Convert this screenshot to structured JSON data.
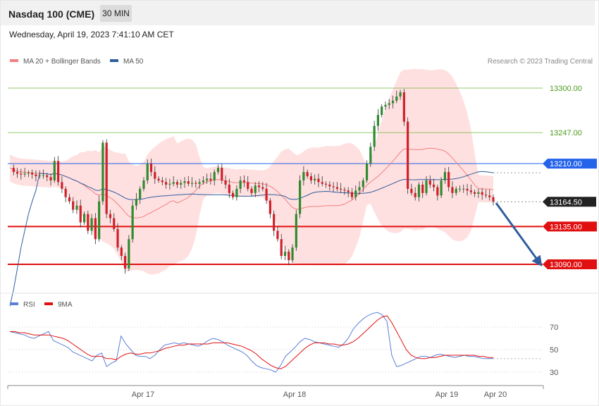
{
  "header": {
    "instrument": "Nasdaq 100 (CME)",
    "timeframe": "30 MIN",
    "datetime": "Wednesday, April 19, 2023 7:41:10 AM CET"
  },
  "legend": {
    "ma20_label": "MA 20 + Bollinger Bands",
    "ma50_label": "MA 50",
    "credit": "Research © 2023 Trading Central",
    "rsi_label": "RSI",
    "rsi_ma_label": "9MA"
  },
  "colors": {
    "bull": "#2e8b2e",
    "bear": "#d0202a",
    "ma20": "#f28080",
    "ma50": "#2f5d9e",
    "band": "#ffd6d6",
    "resistance": "#6fb83a",
    "pivot": "#2563eb",
    "support": "#e01010",
    "rsi": "#5b7fd8",
    "rsi_ma": "#e01010"
  },
  "chart_data": [
    {
      "type": "candlestick",
      "y_range": [
        13060,
        13330
      ],
      "levels": [
        {
          "value": 13300.0,
          "label": "13300.00",
          "kind": "resistance"
        },
        {
          "value": 13247.0,
          "label": "13247.00",
          "kind": "resistance"
        },
        {
          "value": 13210.0,
          "label": "13210.00",
          "kind": "pivot"
        },
        {
          "value": 13164.5,
          "label": "13164.50",
          "kind": "last"
        },
        {
          "value": 13135.0,
          "label": "13135.00",
          "kind": "support"
        },
        {
          "value": 13090.0,
          "label": "13090.00",
          "kind": "support"
        }
      ],
      "x_ticks": [
        "Apr 17",
        "Apr 18",
        "Apr 19",
        "Apr 20"
      ],
      "projection": {
        "from": 13164.5,
        "to": 13090.0
      }
    },
    {
      "type": "line",
      "y_range": [
        20,
        85
      ],
      "y_ticks": [
        70,
        50,
        30
      ],
      "x_ticks": [
        "Apr 17",
        "Apr 18",
        "Apr 19",
        "Apr 20"
      ],
      "series": [
        {
          "name": "RSI",
          "values": [
            66,
            65,
            64,
            63,
            61,
            60,
            62,
            64,
            66,
            58,
            56,
            54,
            52,
            48,
            46,
            44,
            42,
            40,
            45,
            47,
            35,
            38,
            40,
            62,
            55,
            50,
            45,
            44,
            44,
            42,
            45,
            50,
            54,
            55,
            56,
            55,
            56,
            55,
            54,
            53,
            55,
            58,
            60,
            59,
            57,
            54,
            52,
            50,
            48,
            45,
            40,
            36,
            34,
            33,
            32,
            30,
            36,
            44,
            48,
            52,
            57,
            60,
            59,
            57,
            56,
            55,
            54,
            53,
            52,
            55,
            60,
            68,
            73,
            77,
            80,
            82,
            83,
            81,
            75,
            45,
            35,
            36,
            38,
            40,
            42,
            44,
            44,
            43,
            45,
            46,
            45,
            44,
            43,
            44,
            45,
            44,
            44,
            43,
            42,
            42,
            42
          ]
        },
        {
          "name": "9MA",
          "values": [
            66,
            66,
            65,
            65,
            64,
            63,
            63,
            63,
            63,
            62,
            61,
            60,
            58,
            55,
            52,
            49,
            46,
            44,
            44,
            44,
            42,
            42,
            41,
            44,
            46,
            47,
            46,
            46,
            47,
            47,
            48,
            49,
            51,
            52,
            53,
            54,
            54,
            55,
            55,
            55,
            55,
            55,
            56,
            56,
            56,
            56,
            55,
            54,
            53,
            51,
            49,
            46,
            42,
            39,
            36,
            34,
            33,
            35,
            39,
            43,
            47,
            51,
            54,
            56,
            56,
            56,
            55,
            55,
            54,
            54,
            55,
            57,
            60,
            64,
            68,
            72,
            76,
            79,
            80,
            74,
            66,
            58,
            50,
            45,
            43,
            42,
            42,
            43,
            43,
            44,
            45,
            45,
            45,
            45,
            45,
            45,
            45,
            44,
            44,
            43,
            43
          ]
        }
      ]
    }
  ]
}
